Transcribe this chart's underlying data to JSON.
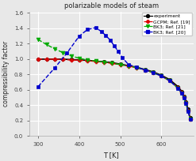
{
  "title": "polarizable models of steam",
  "xlabel": "T [K]",
  "ylabel": "compressibility factor",
  "xlim": [
    278,
    678
  ],
  "ylim": [
    0.0,
    1.62
  ],
  "yticks": [
    0.0,
    0.2,
    0.4,
    0.6,
    0.8,
    1.0,
    1.2,
    1.4,
    1.6
  ],
  "xticks": [
    300,
    400,
    500,
    600
  ],
  "experiment": {
    "T": [
      300,
      320,
      340,
      360,
      380,
      400,
      420,
      440,
      460,
      480,
      500,
      520,
      540,
      560,
      580,
      600,
      620,
      640,
      650,
      655,
      660,
      665,
      670
    ],
    "Z": [
      1.0,
      1.0,
      1.0,
      1.0,
      0.995,
      0.99,
      0.985,
      0.975,
      0.965,
      0.955,
      0.935,
      0.915,
      0.895,
      0.865,
      0.835,
      0.79,
      0.735,
      0.645,
      0.58,
      0.52,
      0.45,
      0.35,
      0.24
    ],
    "color": "#000000",
    "linestyle": "-",
    "marker": "o",
    "markersize": 3.0,
    "linewidth": 1.2,
    "label": "experiment"
  },
  "gcpm": {
    "T": [
      300,
      320,
      340,
      360,
      380,
      400,
      420,
      440,
      460,
      480,
      500,
      520,
      540,
      560,
      580,
      600,
      620,
      640,
      650,
      655,
      660,
      665,
      670
    ],
    "Z": [
      1.0,
      1.0,
      1.0,
      0.995,
      0.99,
      0.985,
      0.98,
      0.97,
      0.96,
      0.945,
      0.93,
      0.91,
      0.89,
      0.86,
      0.825,
      0.78,
      0.72,
      0.63,
      0.565,
      0.505,
      0.435,
      0.335,
      0.225
    ],
    "color": "#dd0000",
    "linestyle": "--",
    "marker": "P",
    "markersize": 3.5,
    "linewidth": 1.0,
    "label": "GCPM; Ref. [19]"
  },
  "bks21": {
    "T": [
      300,
      320,
      340,
      360,
      380,
      400,
      420,
      440,
      460,
      480,
      500,
      520,
      540,
      560,
      580,
      600,
      620,
      640,
      650,
      655,
      660,
      665,
      670
    ],
    "Z": [
      1.255,
      1.19,
      1.135,
      1.085,
      1.045,
      1.01,
      0.99,
      0.975,
      0.963,
      0.948,
      0.928,
      0.91,
      0.89,
      0.86,
      0.825,
      0.78,
      0.72,
      0.625,
      0.555,
      0.495,
      0.425,
      0.325,
      0.22
    ],
    "color": "#00aa00",
    "linestyle": "--",
    "marker": "v",
    "markersize": 3.5,
    "linewidth": 1.0,
    "label": "BK3; Ref. [21]"
  },
  "bks20": {
    "T": [
      300,
      340,
      370,
      400,
      420,
      440,
      455,
      465,
      475,
      485,
      495,
      505,
      520,
      540,
      560,
      580,
      600,
      620,
      640,
      650,
      655,
      660,
      665,
      670
    ],
    "Z": [
      0.645,
      0.885,
      1.08,
      1.3,
      1.385,
      1.41,
      1.355,
      1.305,
      1.25,
      1.175,
      1.1,
      1.02,
      0.93,
      0.895,
      0.86,
      0.825,
      0.78,
      0.72,
      0.625,
      0.555,
      0.495,
      0.425,
      0.325,
      0.22
    ],
    "color": "#0000cc",
    "linestyle": "--",
    "marker": "s",
    "markersize": 3.5,
    "linewidth": 1.0,
    "label": "BK3; Ref. [20]"
  },
  "fig_bg": "#e8e8e8",
  "plot_bg": "#e8e8e8",
  "grid_color": "#ffffff",
  "spine_color": "#aaaaaa",
  "tick_color": "#444444"
}
